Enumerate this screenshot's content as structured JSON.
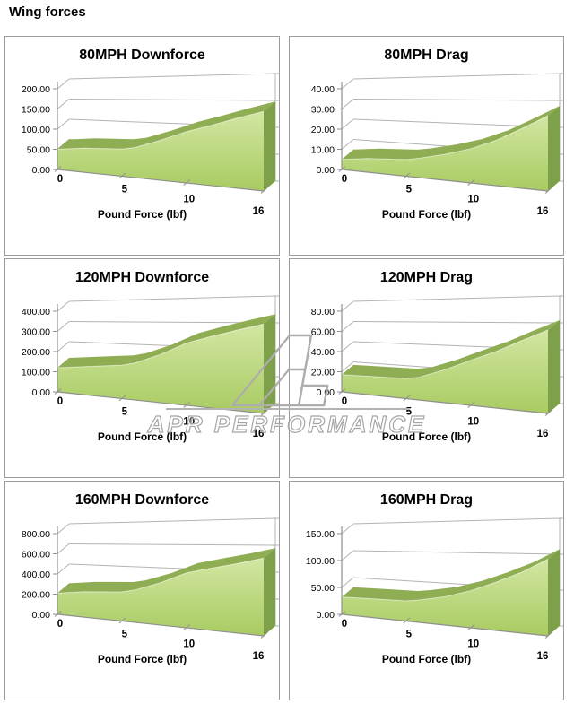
{
  "page": {
    "title": "Wing forces"
  },
  "watermark": {
    "text": "APR PERFORMANCE",
    "logo_icon": "apr-logo"
  },
  "style": {
    "face_top": "#d2e6a2",
    "face_bottom": "#a8cb61",
    "ribbon": "#8fad53",
    "endcap": "#7fa04a",
    "grid": "#b3b3b3",
    "axis": "#8f8f8f",
    "label": "#000000",
    "panel_border": "#9b9b9b",
    "watermark_gray": "#adadad"
  },
  "chart_data": [
    {
      "type": "area",
      "title": "80MPH Downforce",
      "xlabel": "Pound Force (lbf)",
      "xlim": [
        0,
        16
      ],
      "ylim": [
        0,
        200
      ],
      "x_ticks": [
        0,
        5,
        10,
        16
      ],
      "y_ticks": [
        "0.00",
        "50.00",
        "100.00",
        "150.00",
        "200.00"
      ],
      "x": [
        0,
        2,
        5,
        6,
        8,
        10,
        12,
        14,
        16
      ],
      "values": [
        50,
        57,
        61,
        66,
        85,
        105,
        120,
        135,
        148
      ]
    },
    {
      "type": "area",
      "title": "80MPH Drag",
      "xlabel": "Pound Force (lbf)",
      "xlim": [
        0,
        16
      ],
      "ylim": [
        0,
        40
      ],
      "x_ticks": [
        0,
        5,
        10,
        16
      ],
      "y_ticks": [
        "0.00",
        "10.00",
        "20.00",
        "30.00",
        "40.00"
      ],
      "x": [
        0,
        2,
        5,
        6,
        8,
        10,
        12,
        14,
        16
      ],
      "values": [
        5,
        6.5,
        7.5,
        8.5,
        11,
        14,
        18,
        23,
        28
      ]
    },
    {
      "type": "area",
      "title": "120MPH Downforce",
      "xlabel": "Pound Force (lbf)",
      "xlim": [
        0,
        16
      ],
      "ylim": [
        0,
        400
      ],
      "x_ticks": [
        0,
        5,
        10,
        16
      ],
      "y_ticks": [
        "0.00",
        "100.00",
        "200.00",
        "300.00",
        "400.00"
      ],
      "x": [
        0,
        2,
        5,
        6,
        8,
        10,
        12,
        14,
        16
      ],
      "values": [
        120,
        133,
        150,
        163,
        205,
        255,
        285,
        310,
        332
      ]
    },
    {
      "type": "area",
      "title": "120MPH Drag",
      "xlabel": "Pound Force (lbf)",
      "xlim": [
        0,
        16
      ],
      "ylim": [
        0,
        80
      ],
      "x_ticks": [
        0,
        5,
        10,
        16
      ],
      "y_ticks": [
        "0.00",
        "20.00",
        "40.00",
        "60.00",
        "80.00"
      ],
      "x": [
        0,
        2,
        5,
        6,
        8,
        10,
        12,
        14,
        16
      ],
      "values": [
        17,
        17.5,
        18,
        20,
        28,
        37,
        45,
        54,
        62
      ]
    },
    {
      "type": "area",
      "title": "160MPH Downforce",
      "xlabel": "Pound Force (lbf)",
      "xlim": [
        0,
        16
      ],
      "ylim": [
        0,
        800
      ],
      "x_ticks": [
        0,
        5,
        10,
        16
      ],
      "y_ticks": [
        "0.00",
        "200.00",
        "400.00",
        "600.00",
        "800.00"
      ],
      "x": [
        0,
        2,
        5,
        6,
        8,
        10,
        12,
        14,
        16
      ],
      "values": [
        210,
        240,
        262,
        285,
        360,
        450,
        495,
        535,
        578
      ]
    },
    {
      "type": "area",
      "title": "160MPH Drag",
      "xlabel": "Pound Force (lbf)",
      "xlim": [
        0,
        16
      ],
      "ylim": [
        0,
        150
      ],
      "x_ticks": [
        0,
        5,
        10,
        16
      ],
      "y_ticks": [
        "0.00",
        "50.00",
        "100.00",
        "150.00"
      ],
      "x": [
        0,
        2,
        5,
        6,
        8,
        10,
        12,
        14,
        16
      ],
      "values": [
        32,
        33,
        34,
        37,
        45,
        57,
        72,
        88,
        107
      ]
    }
  ]
}
